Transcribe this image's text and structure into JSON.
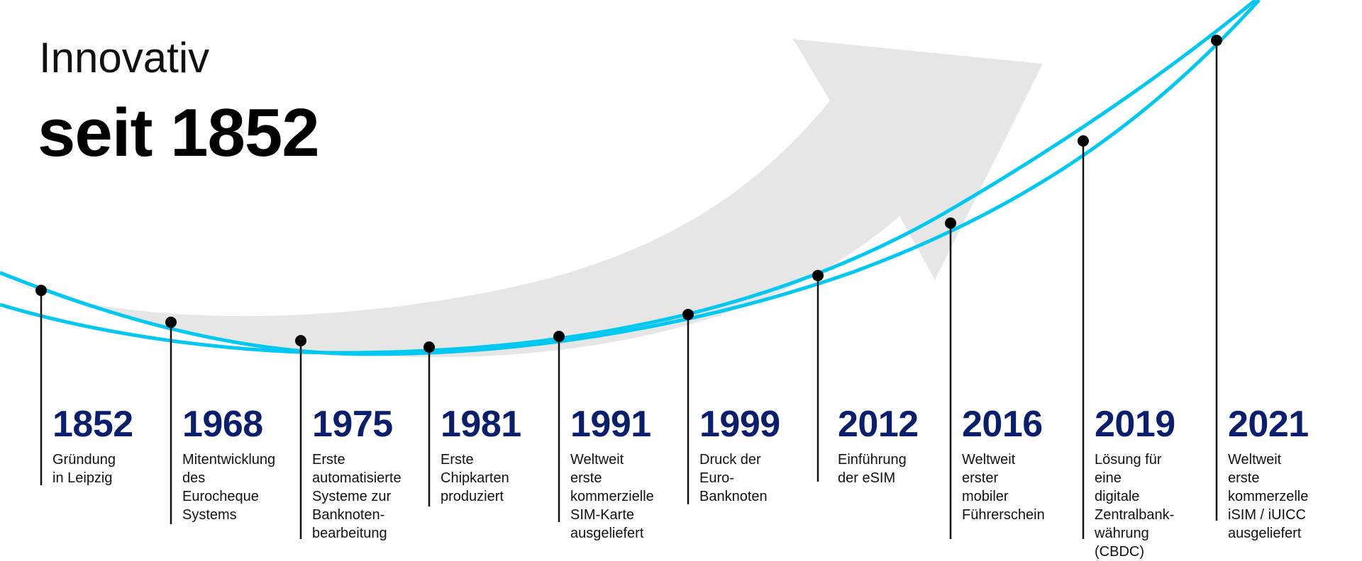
{
  "header": {
    "line1": "Innovativ",
    "line2": "seit 1852"
  },
  "colors": {
    "curve": "#00c8f0",
    "arrow": "#e6e6e6",
    "year": "#0a1e6e",
    "stem": "#111111"
  },
  "milestones": [
    {
      "year": "1852",
      "text": "Gründung\nin Leipzig"
    },
    {
      "year": "1968",
      "text": "Mitentwicklung\ndes\nEurocheque\nSystems"
    },
    {
      "year": "1975",
      "text": "Erste\nautomatisierte\nSysteme zur\nBanknoten-\nbearbeitung"
    },
    {
      "year": "1981",
      "text": "Erste\nChipkarten\nproduziert"
    },
    {
      "year": "1991",
      "text": "Weltweit erste\nkommerzielle\nSIM-Karte\nausgeliefert"
    },
    {
      "year": "1999",
      "text": "Druck der\nEuro-\nBanknoten"
    },
    {
      "year": "2012",
      "text": "Einführung\nder eSIM"
    },
    {
      "year": "2016",
      "text": "Weltweit erster\nmobiler\nFührerschein"
    },
    {
      "year": "2019",
      "text": "Lösung für eine\ndigitale\nZentralbank-\nwährung\n(CBDC)"
    },
    {
      "year": "2021",
      "text": "Weltweit erste\nkommerzelle\niSIM / iUICC\nausgeliefert"
    }
  ]
}
